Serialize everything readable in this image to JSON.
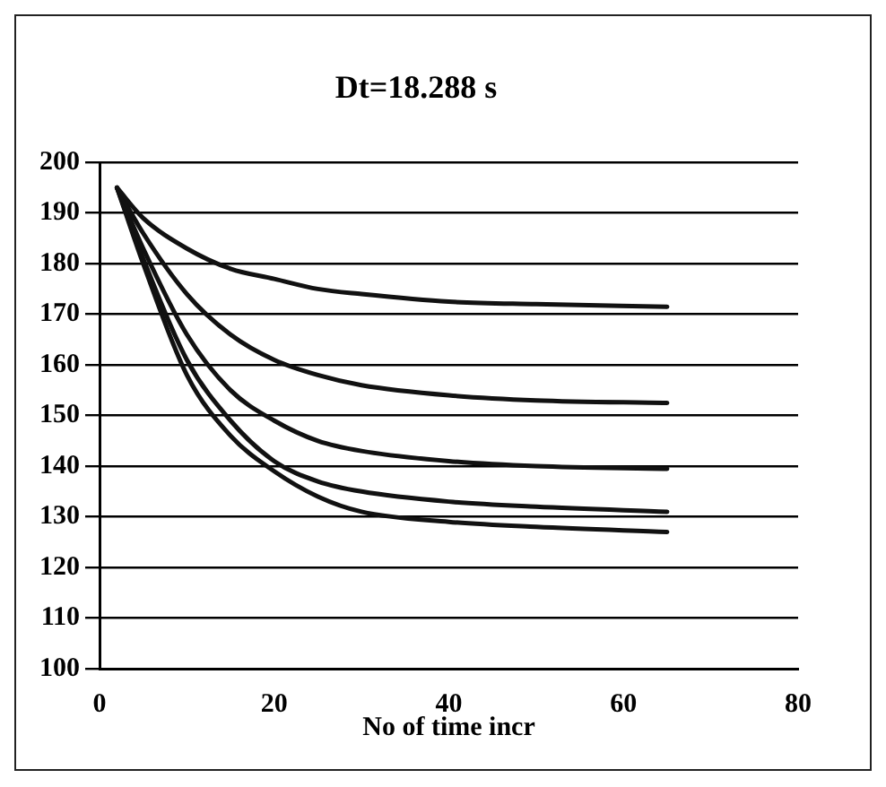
{
  "chart_data": {
    "type": "line",
    "title": "Dt=18.288 s",
    "xlabel": "No of time incr",
    "xlim": [
      0,
      80
    ],
    "xticks": [
      0,
      20,
      40,
      60,
      80
    ],
    "ylim": [
      100,
      200
    ],
    "yticks": [
      100,
      110,
      120,
      130,
      140,
      150,
      160,
      170,
      180,
      190,
      200
    ],
    "grid": "y",
    "legend": false,
    "marker": "none",
    "line_style": "solid",
    "series": [
      {
        "color": "#111111",
        "x": [
          2,
          5,
          10,
          15,
          20,
          25,
          30,
          40,
          50,
          65
        ],
        "values": [
          195,
          189,
          183,
          179,
          177,
          175,
          174,
          172.5,
          172,
          171.5
        ]
      },
      {
        "color": "#111111",
        "x": [
          2,
          5,
          10,
          15,
          20,
          25,
          30,
          40,
          50,
          65
        ],
        "values": [
          195,
          186,
          174,
          166,
          161,
          158,
          156,
          154,
          153,
          152.5
        ]
      },
      {
        "color": "#111111",
        "x": [
          2,
          5,
          10,
          15,
          20,
          25,
          30,
          40,
          50,
          65
        ],
        "values": [
          195,
          183,
          166,
          155,
          149,
          145,
          143,
          141,
          140,
          139.5
        ]
      },
      {
        "color": "#111111",
        "x": [
          2,
          5,
          10,
          15,
          20,
          25,
          30,
          40,
          50,
          65
        ],
        "values": [
          195,
          181,
          161,
          149,
          141,
          137,
          135,
          133,
          132,
          131
        ]
      },
      {
        "color": "#111111",
        "x": [
          2,
          5,
          10,
          15,
          20,
          25,
          30,
          40,
          50,
          65
        ],
        "values": [
          195,
          180,
          158,
          146,
          139,
          134,
          131,
          129,
          128,
          127
        ]
      }
    ]
  }
}
